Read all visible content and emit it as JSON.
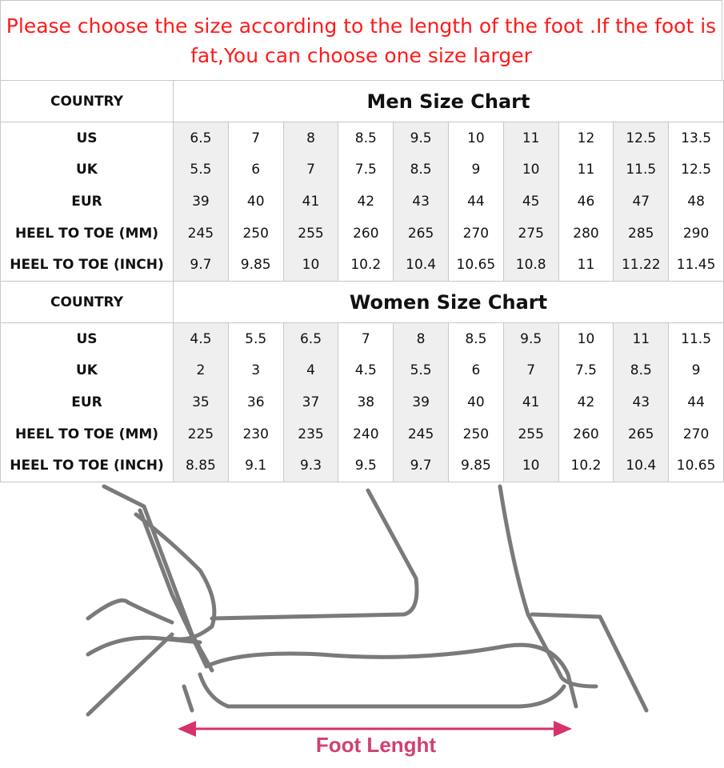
{
  "notice": "Please choose the size according to the length of the foot .If the foot is fat,You can choose one size larger",
  "men": {
    "country_label": "COUNTRY",
    "title": "Men Size Chart",
    "rows": [
      {
        "label": "US",
        "values": [
          "6.5",
          "7",
          "8",
          "8.5",
          "9.5",
          "10",
          "11",
          "12",
          "12.5",
          "13.5"
        ]
      },
      {
        "label": "UK",
        "values": [
          "5.5",
          "6",
          "7",
          "7.5",
          "8.5",
          "9",
          "10",
          "11",
          "11.5",
          "12.5"
        ]
      },
      {
        "label": "EUR",
        "values": [
          "39",
          "40",
          "41",
          "42",
          "43",
          "44",
          "45",
          "46",
          "47",
          "48"
        ]
      },
      {
        "label": "HEEL TO TOE (MM)",
        "values": [
          "245",
          "250",
          "255",
          "260",
          "265",
          "270",
          "275",
          "280",
          "285",
          "290"
        ]
      },
      {
        "label": "HEEL TO TOE (INCH)",
        "values": [
          "9.7",
          "9.85",
          "10",
          "10.2",
          "10.4",
          "10.65",
          "10.8",
          "11",
          "11.22",
          "11.45"
        ]
      }
    ]
  },
  "women": {
    "country_label": "COUNTRY",
    "title": "Women Size Chart",
    "rows": [
      {
        "label": "US",
        "values": [
          "4.5",
          "5.5",
          "6.5",
          "7",
          "8",
          "8.5",
          "9.5",
          "10",
          "11",
          "11.5"
        ]
      },
      {
        "label": "UK",
        "values": [
          "2",
          "3",
          "4",
          "4.5",
          "5.5",
          "6",
          "7",
          "7.5",
          "8.5",
          "9"
        ]
      },
      {
        "label": "EUR",
        "values": [
          "35",
          "36",
          "37",
          "38",
          "39",
          "40",
          "41",
          "42",
          "43",
          "44"
        ]
      },
      {
        "label": "HEEL TO TOE (MM)",
        "values": [
          "225",
          "230",
          "235",
          "240",
          "245",
          "250",
          "255",
          "260",
          "265",
          "270"
        ]
      },
      {
        "label": "HEEL TO TOE (INCH)",
        "values": [
          "8.85",
          "9.1",
          "9.3",
          "9.5",
          "9.7",
          "9.85",
          "10",
          "10.2",
          "10.4",
          "10.65"
        ]
      }
    ]
  },
  "illustration": {
    "caption": "Foot Lenght",
    "arrow_color": "#d6336c",
    "line_color": "#7a7a7a"
  },
  "colors": {
    "notice": "#ff1a1a",
    "shade": "#efefef"
  }
}
